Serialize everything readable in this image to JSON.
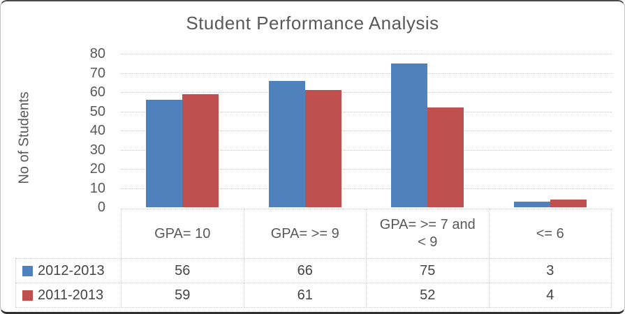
{
  "window": {
    "background": "#ffffff",
    "border_color": "#c2c2c2"
  },
  "colors": {
    "series_blue": "#4F81BD",
    "series_red": "#C0504D",
    "text_gray": "#595959",
    "grid_gray": "#c9c9c9"
  },
  "chart_data": {
    "type": "bar",
    "title": "Student Performance Analysis",
    "xlabel": "",
    "ylabel": "No of Students",
    "categories": [
      "GPA= 10",
      "GPA=  >= 9",
      "GPA=  >= 7 and < 9",
      "<= 6"
    ],
    "series": [
      {
        "name": "2012-2013",
        "color": "#4F81BD",
        "values": [
          56,
          66,
          75,
          3
        ]
      },
      {
        "name": "2011-2013",
        "color": "#C0504D",
        "values": [
          59,
          61,
          52,
          4
        ]
      }
    ],
    "ylim": [
      0,
      80
    ],
    "ytick_step": 10,
    "yticks": [
      0,
      10,
      20,
      30,
      40,
      50,
      60,
      70,
      80
    ],
    "grid": true,
    "gridline_style": "dotted",
    "legend_position": "data-table-left",
    "data_table": true
  }
}
